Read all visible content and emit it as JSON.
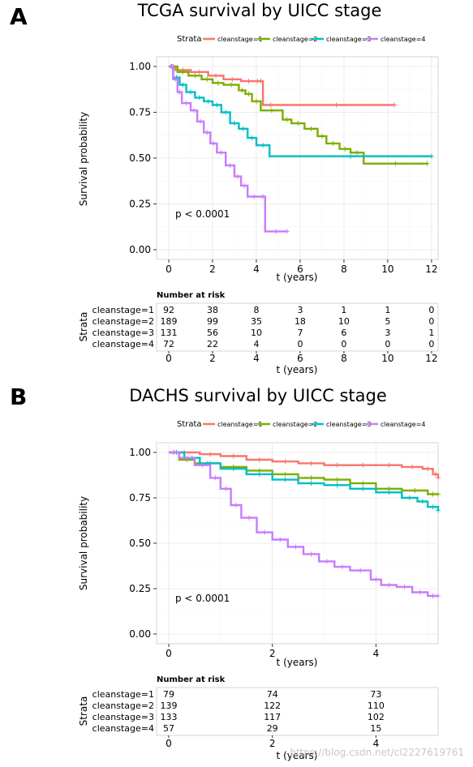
{
  "panels": [
    {
      "letter": "A",
      "title": "TCGA survival by UICC stage",
      "pvalue": "p < 0.0001",
      "risk_title": "Number at risk",
      "risk_row_labels": [
        "cleanstage=1",
        "cleanstage=2",
        "cleanstage=3",
        "cleanstage=4"
      ],
      "risk_times": [
        "0",
        "2",
        "4",
        "6",
        "8",
        "10",
        "12"
      ],
      "risk_table": [
        [
          "92",
          "38",
          "8",
          "3",
          "1",
          "1",
          "0"
        ],
        [
          "189",
          "99",
          "35",
          "18",
          "10",
          "5",
          "0"
        ],
        [
          "131",
          "56",
          "10",
          "7",
          "6",
          "3",
          "1"
        ],
        [
          "72",
          "22",
          "4",
          "0",
          "0",
          "0",
          "0"
        ]
      ]
    },
    {
      "letter": "B",
      "title": "DACHS survival by UICC stage",
      "pvalue": "p < 0.0001",
      "risk_title": "Number at risk",
      "risk_row_labels": [
        "cleanstage=1",
        "cleanstage=2",
        "cleanstage=3",
        "cleanstage=4"
      ],
      "risk_times": [
        "0",
        "2",
        "4"
      ],
      "risk_table": [
        [
          "79",
          "74",
          "73"
        ],
        [
          "139",
          "122",
          "110"
        ],
        [
          "133",
          "117",
          "102"
        ],
        [
          "57",
          "29",
          "15"
        ]
      ]
    }
  ],
  "legend": {
    "title": "Strata",
    "entries": [
      "cleanstage=1",
      "cleanstage=2",
      "cleanstage=3",
      "cleanstage=4"
    ]
  },
  "colors": [
    "#F8766D",
    "#7CAE00",
    "#00BFC4",
    "#C77CFF"
  ],
  "watermark": "https://blog.csdn.net/cl2227619761",
  "chart_data": [
    {
      "type": "line",
      "step": true,
      "title": "TCGA survival by UICC stage",
      "xlabel": "t (years)",
      "ylabel": "Survival probability",
      "xlim": [
        0,
        12.3
      ],
      "ylim": [
        0,
        1
      ],
      "xticks": [
        0,
        2,
        4,
        6,
        8,
        10,
        12
      ],
      "yticks": [
        0.0,
        0.25,
        0.5,
        0.75,
        1.0
      ],
      "ytick_labels": [
        "0.00",
        "0.25",
        "0.50",
        "0.75",
        "1.00"
      ],
      "grid": true,
      "legend_position": "top",
      "series": [
        {
          "name": "cleanstage=1",
          "x": [
            0,
            0.3,
            1.0,
            1.8,
            2.5,
            3.3,
            4.0,
            4.1,
            4.3,
            5.0,
            10.3
          ],
          "y": [
            1.0,
            0.98,
            0.97,
            0.95,
            0.93,
            0.92,
            0.92,
            0.92,
            0.79,
            0.79,
            0.79
          ]
        },
        {
          "name": "cleanstage=2",
          "x": [
            0,
            0.4,
            0.9,
            1.5,
            2.0,
            2.5,
            3.2,
            3.5,
            3.8,
            4.2,
            5.2,
            5.6,
            6.2,
            6.8,
            7.2,
            7.8,
            8.3,
            8.9,
            11.8
          ],
          "y": [
            1.0,
            0.97,
            0.95,
            0.93,
            0.91,
            0.9,
            0.87,
            0.85,
            0.81,
            0.76,
            0.71,
            0.69,
            0.66,
            0.62,
            0.58,
            0.55,
            0.53,
            0.47,
            0.47
          ]
        },
        {
          "name": "cleanstage=3",
          "x": [
            0,
            0.2,
            0.5,
            0.8,
            1.2,
            1.6,
            2.0,
            2.4,
            2.8,
            3.2,
            3.6,
            4.0,
            4.6,
            12.0
          ],
          "y": [
            1.0,
            0.94,
            0.9,
            0.86,
            0.83,
            0.81,
            0.79,
            0.75,
            0.69,
            0.66,
            0.61,
            0.57,
            0.51,
            0.51
          ]
        },
        {
          "name": "cleanstage=4",
          "x": [
            0,
            0.2,
            0.4,
            0.6,
            1.0,
            1.3,
            1.6,
            1.9,
            2.2,
            2.6,
            3.0,
            3.3,
            3.6,
            4.2,
            4.4,
            5.4
          ],
          "y": [
            1.0,
            0.93,
            0.86,
            0.8,
            0.76,
            0.7,
            0.64,
            0.58,
            0.53,
            0.46,
            0.4,
            0.35,
            0.29,
            0.29,
            0.1,
            0.1
          ]
        }
      ]
    },
    {
      "type": "line",
      "step": true,
      "title": "DACHS survival by UICC stage",
      "xlabel": "t (years)",
      "ylabel": "Survival probability",
      "xlim": [
        0,
        5.2
      ],
      "ylim": [
        0,
        1
      ],
      "xticks": [
        0,
        2,
        4
      ],
      "yticks": [
        0.0,
        0.25,
        0.5,
        0.75,
        1.0
      ],
      "ytick_labels": [
        "0.00",
        "0.25",
        "0.50",
        "0.75",
        "1.00"
      ],
      "grid": true,
      "legend_position": "top",
      "series": [
        {
          "name": "cleanstage=1",
          "x": [
            0,
            0.6,
            1.0,
            1.5,
            2.0,
            2.5,
            3.0,
            3.5,
            4.0,
            4.5,
            4.9,
            5.1,
            5.2
          ],
          "y": [
            1.0,
            0.99,
            0.98,
            0.96,
            0.95,
            0.94,
            0.93,
            0.93,
            0.93,
            0.92,
            0.91,
            0.88,
            0.86
          ]
        },
        {
          "name": "cleanstage=2",
          "x": [
            0,
            0.2,
            0.5,
            1.0,
            1.5,
            2.0,
            2.5,
            3.0,
            3.5,
            4.0,
            4.5,
            5.0,
            5.2
          ],
          "y": [
            1.0,
            0.96,
            0.94,
            0.92,
            0.9,
            0.88,
            0.86,
            0.85,
            0.83,
            0.8,
            0.79,
            0.77,
            0.77
          ]
        },
        {
          "name": "cleanstage=3",
          "x": [
            0,
            0.3,
            0.6,
            1.0,
            1.5,
            2.0,
            2.5,
            3.0,
            3.5,
            4.0,
            4.5,
            4.8,
            5.0,
            5.2
          ],
          "y": [
            1.0,
            0.97,
            0.94,
            0.91,
            0.88,
            0.85,
            0.83,
            0.82,
            0.8,
            0.78,
            0.75,
            0.73,
            0.7,
            0.68
          ]
        },
        {
          "name": "cleanstage=4",
          "x": [
            0,
            0.2,
            0.5,
            0.8,
            1.0,
            1.2,
            1.4,
            1.7,
            2.0,
            2.3,
            2.6,
            2.9,
            3.2,
            3.5,
            3.9,
            4.1,
            4.4,
            4.7,
            5.0,
            5.2
          ],
          "y": [
            1.0,
            0.97,
            0.93,
            0.86,
            0.8,
            0.71,
            0.64,
            0.56,
            0.52,
            0.48,
            0.44,
            0.4,
            0.37,
            0.35,
            0.3,
            0.27,
            0.26,
            0.23,
            0.21,
            0.21
          ]
        }
      ]
    }
  ]
}
